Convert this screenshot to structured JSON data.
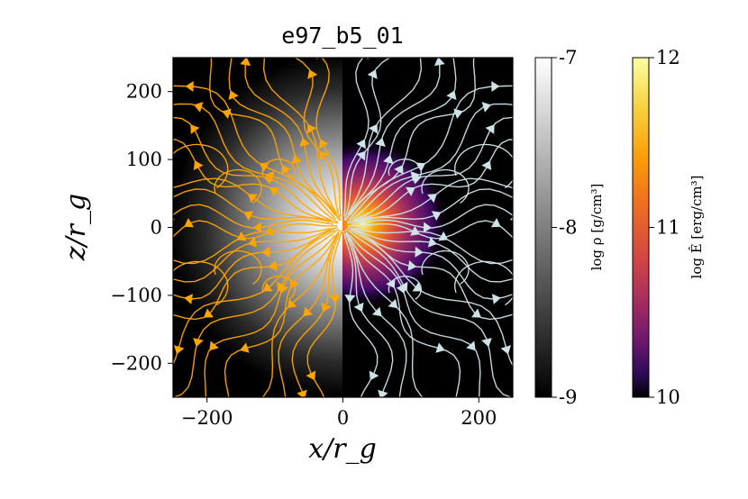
{
  "chart_data": {
    "type": "heatmap",
    "title": "e97_b5_01",
    "xlabel": "x/r_g",
    "ylabel": "z/r_g",
    "xlim": [
      -250,
      250
    ],
    "ylim": [
      -250,
      250
    ],
    "xticks": [
      {
        "value": -200,
        "label": "−200"
      },
      {
        "value": 0,
        "label": "0"
      },
      {
        "value": 200,
        "label": "200"
      }
    ],
    "yticks": [
      {
        "value": 200,
        "label": "200"
      },
      {
        "value": 100,
        "label": "100"
      },
      {
        "value": 0,
        "label": "0"
      },
      {
        "value": -100,
        "label": "−100"
      },
      {
        "value": -200,
        "label": "−200"
      }
    ],
    "panels": [
      {
        "side": "left",
        "field": "density",
        "colormap": "grays",
        "streamline_color": "#FFA500"
      },
      {
        "side": "right",
        "field": "energy",
        "colormap": "inferno",
        "streamline_color": "#CDE3E8"
      }
    ],
    "colorbars": [
      {
        "label": "log ρ [g/cm³]",
        "range": [
          -9,
          -7
        ],
        "ticks": [
          {
            "value": -7,
            "label": "-7"
          },
          {
            "value": -8,
            "label": "-8"
          },
          {
            "value": -9,
            "label": "-9"
          }
        ]
      },
      {
        "label": "log Ê [erg/cm³]",
        "range": [
          10,
          12
        ],
        "ticks": [
          {
            "value": 12,
            "label": "12"
          },
          {
            "value": 11,
            "label": "11"
          },
          {
            "value": 10,
            "label": "10"
          }
        ]
      }
    ],
    "grid": false
  }
}
